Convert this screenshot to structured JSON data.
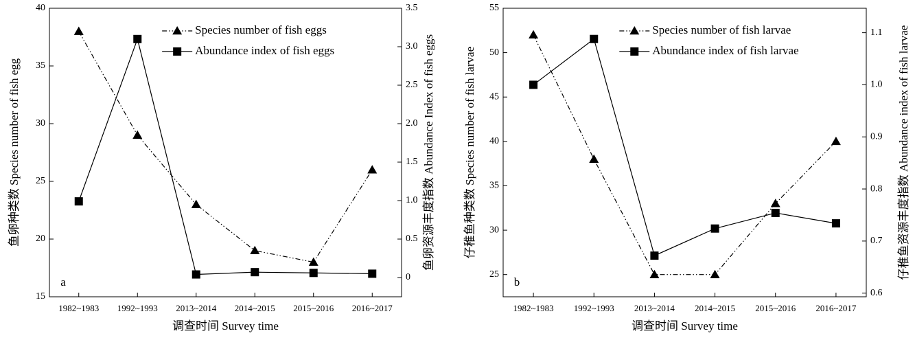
{
  "chart_data": [
    {
      "type": "line",
      "annotation": "a",
      "xlabel": "调查时间 Survey time",
      "ylabel": "鱼卵种类数 Species number of fish egg",
      "y2label": "鱼卵资源丰度指数 Abundance Index of fish eggs",
      "categories": [
        "1982~1983",
        "1992~1993",
        "2013~2014",
        "2014~2015",
        "2015~2016",
        "2016~2017"
      ],
      "series": [
        {
          "name": "Species number of fish eggs",
          "color": "#000000",
          "marker": "triangle",
          "linestyle": "dashdotdot",
          "axis": "y",
          "values": [
            38,
            29,
            23,
            19,
            18,
            26
          ]
        },
        {
          "name": "Abundance index of fish eggs",
          "color": "#000000",
          "marker": "square",
          "linestyle": "solid",
          "axis": "y2",
          "values": [
            0.99,
            3.1,
            0.04,
            0.07,
            0.06,
            0.05
          ]
        }
      ],
      "ylim": [
        15,
        40
      ],
      "yticks": [
        15,
        20,
        25,
        30,
        35,
        40
      ],
      "y2lim": [
        -0.25,
        3.5
      ],
      "y2ticks": [
        0,
        0.5,
        {
          "value": 1,
          "label": "1.0"
        },
        1.5,
        {
          "value": 2,
          "label": "2.0"
        },
        2.5,
        {
          "value": 3,
          "label": "3.0"
        },
        3.5
      ],
      "legend": "upper right"
    },
    {
      "type": "line",
      "annotation": "b",
      "xlabel": "调查时间 Survey time",
      "ylabel": "仔稚鱼种类数 Species number of fish larvae",
      "y2label": "仔稚鱼资源丰度指数 Abundance index of fish larvae",
      "categories": [
        "1982~1983",
        "1992~1993",
        "2013~2014",
        "2014~2015",
        "2015~2016",
        "2016~2017"
      ],
      "series": [
        {
          "name": "Species number of fish larvae",
          "color": "#000000",
          "marker": "triangle",
          "linestyle": "dashdotdot",
          "axis": "y",
          "values": [
            52,
            38,
            25,
            25,
            33,
            40
          ]
        },
        {
          "name": "Abundance index of fish larvae",
          "color": "#000000",
          "marker": "square",
          "linestyle": "solid",
          "axis": "y2",
          "values": [
            1.0,
            1.088,
            0.672,
            0.724,
            0.754,
            0.734
          ]
        }
      ],
      "ylim": [
        22.5,
        55
      ],
      "yticks": [
        25,
        30,
        35,
        40,
        45,
        50,
        55
      ],
      "y2lim": [
        0.593,
        1.147
      ],
      "y2ticks": [
        0.6,
        0.7,
        0.8,
        0.9,
        {
          "value": 1,
          "label": "1.0"
        },
        1.1
      ],
      "legend": "upper right"
    }
  ]
}
